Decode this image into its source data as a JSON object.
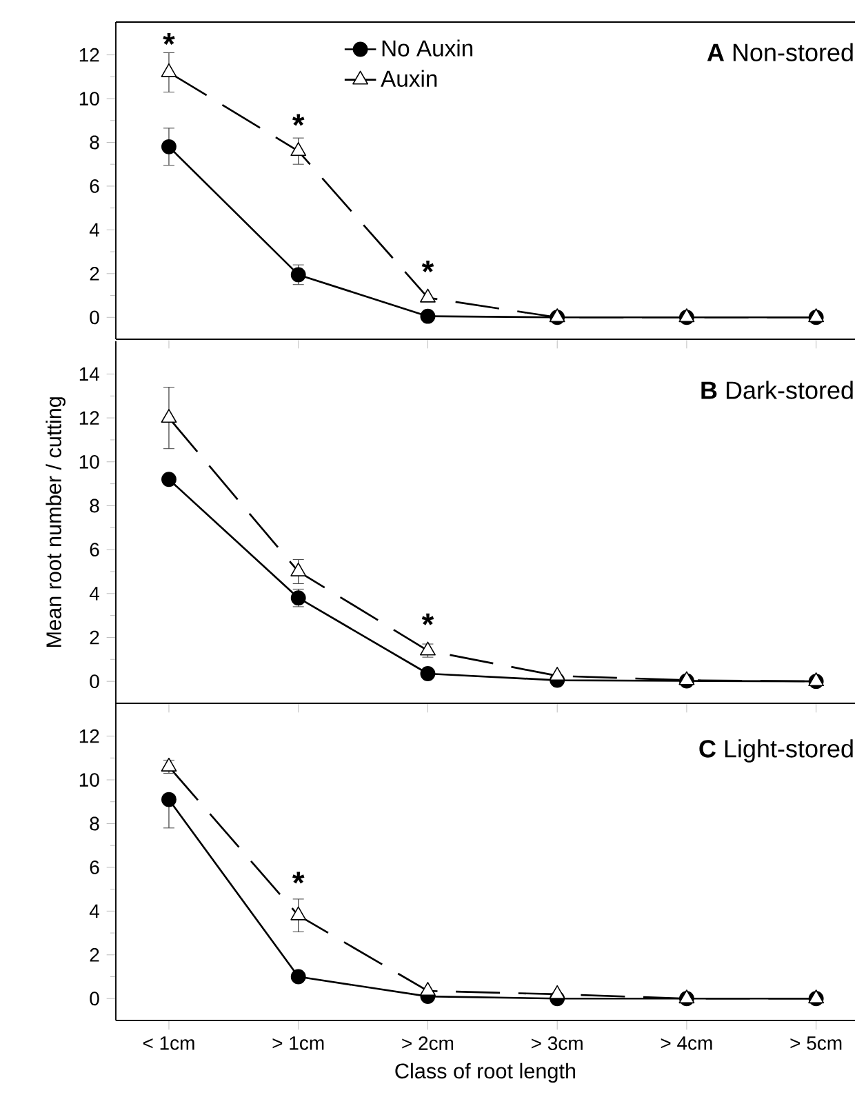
{
  "chart_data": [
    {
      "type": "line",
      "title": "**A** Non-stored",
      "categories": [
        null,
        null,
        null,
        null,
        null,
        null
      ],
      "series": [
        {
          "name": "No Auxin",
          "color": "#000000",
          "marker": "circle",
          "line_style": "solid",
          "values": [
            7.8,
            1.95,
            0.05,
            0,
            0,
            0
          ],
          "errors": [
            0.85,
            0.45,
            null,
            null,
            null,
            null
          ]
        },
        {
          "name": "Auxin",
          "color": "#000000",
          "marker": "triangle",
          "line_style": "dashed",
          "values": [
            11.2,
            7.6,
            0.9,
            0,
            0,
            0
          ],
          "errors": [
            0.9,
            0.6,
            null,
            null,
            null,
            null
          ]
        }
      ],
      "ylim": [
        -1,
        13.5
      ],
      "yticks": [
        0,
        2,
        4,
        6,
        8,
        10,
        12
      ],
      "legend": "top",
      "tick_labels": "y",
      "annotations": [
        "*",
        "*",
        "*"
      ]
    },
    {
      "type": "line",
      "title": "**B** Dark-stored",
      "categories": [
        null,
        null,
        null,
        null,
        null,
        null
      ],
      "series": [
        {
          "color": "#000000",
          "marker": "circle",
          "line_style": "solid",
          "values": [
            9.2,
            3.8,
            0.35,
            0.05,
            0.02,
            0
          ],
          "errors": [
            null,
            0.4,
            null,
            null,
            null,
            null
          ]
        },
        {
          "color": "#000000",
          "marker": "triangle",
          "line_style": "dashed",
          "values": [
            12.0,
            5.0,
            1.4,
            0.25,
            0.05,
            0
          ],
          "errors": [
            1.4,
            0.55,
            0.3,
            null,
            null,
            null
          ]
        }
      ],
      "ylim": [
        -1,
        15.5
      ],
      "yticks": [
        0,
        2,
        4,
        6,
        8,
        10,
        12,
        14
      ],
      "tick_labels": "y",
      "ylabel": "Mean root number / cutting",
      "annotations": [
        "*"
      ]
    },
    {
      "type": "line",
      "title": "**C** Light-stored",
      "categories": [
        "< 1cm",
        "> 1cm",
        "> 2cm",
        "> 3cm",
        "> 4cm",
        "> 5cm"
      ],
      "series": [
        {
          "color": "#000000",
          "marker": "circle",
          "line_style": "solid",
          "values": [
            9.1,
            1.0,
            0.1,
            0,
            0,
            0
          ],
          "errors": [
            [
              7.8,
              9.1
            ],
            null,
            null,
            null,
            null,
            null
          ]
        },
        {
          "color": "#000000",
          "marker": "triangle",
          "line_style": "dashed",
          "values": [
            10.6,
            3.8,
            0.35,
            0.2,
            0,
            0
          ],
          "errors": [
            [
              10.3,
              10.9
            ],
            0.75,
            null,
            null,
            null,
            null
          ]
        }
      ],
      "ylim": [
        -1,
        13.5
      ],
      "yticks": [
        0,
        2,
        4,
        6,
        8,
        10,
        12
      ],
      "xlabel": "Class of root length",
      "annotations": [
        "*"
      ]
    }
  ]
}
